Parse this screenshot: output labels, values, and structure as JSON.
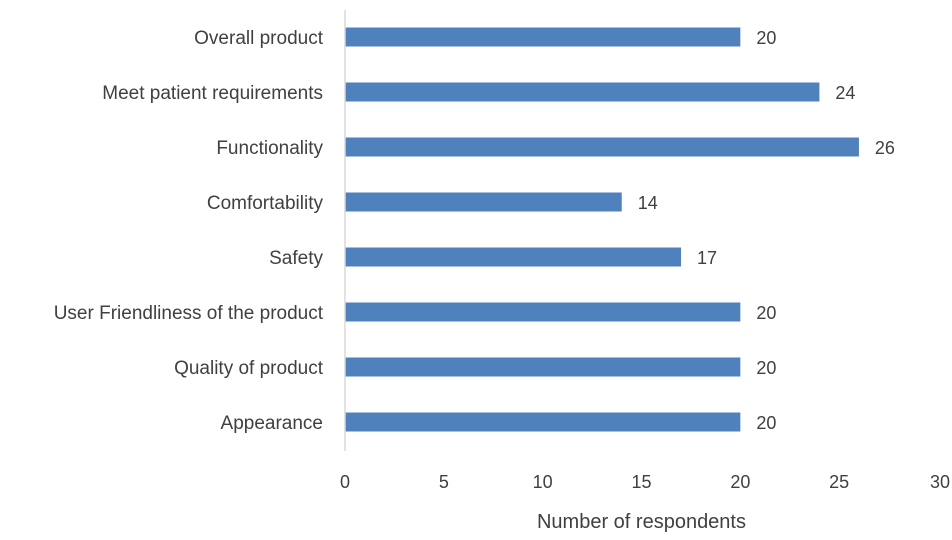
{
  "chart_data": {
    "type": "bar",
    "orientation": "horizontal",
    "categories": [
      "Overall product",
      "Meet patient requirements",
      "Functionality",
      "Comfortability",
      "Safety",
      "User Friendliness of the product",
      "Quality of product",
      "Appearance"
    ],
    "values": [
      20,
      24,
      26,
      14,
      17,
      20,
      20,
      20
    ],
    "data_labels": [
      "20",
      "24",
      "26",
      "14",
      "17",
      "20",
      "20",
      "20"
    ],
    "xlabel": "Number of respondents",
    "ylabel": "",
    "xlim": [
      0,
      30
    ],
    "xticks": [
      "0",
      "5",
      "10",
      "15",
      "20",
      "25",
      "30"
    ],
    "grid": false,
    "legend": "none",
    "bar_color": "#4f81bd",
    "axis_color": "#d9d9d9",
    "text_color": "#404040"
  }
}
